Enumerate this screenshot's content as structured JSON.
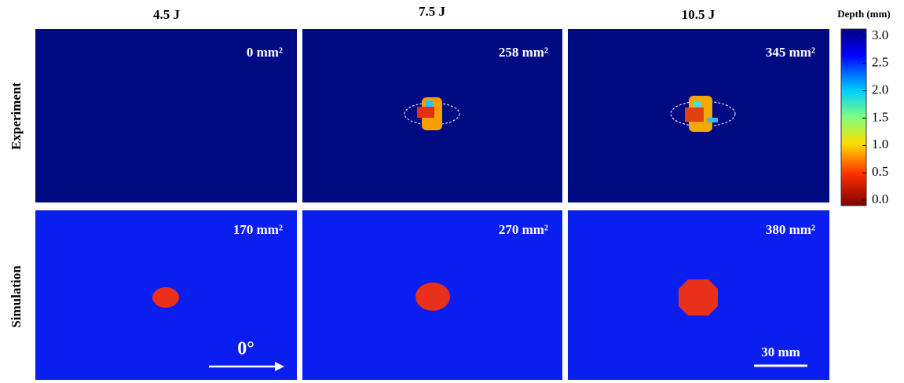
{
  "columns": [
    "4.5 J",
    "7.5 J",
    "10.5 J"
  ],
  "rows": [
    "Experiment",
    "Simulation"
  ],
  "panels": [
    [
      "0 mm²",
      "258 mm²",
      "345 mm²"
    ],
    [
      "170 mm²",
      "270 mm²",
      "380 mm²"
    ]
  ],
  "direction_label": "0°",
  "scale_bar_label": "30 mm",
  "colorbar": {
    "title": "Depth (mm)",
    "ticks": [
      {
        "value": 3,
        "label": "3.0"
      },
      {
        "value": 2.5,
        "label": "2.5"
      },
      {
        "value": 2,
        "label": "2.0"
      },
      {
        "value": 1.5,
        "label": "1.5"
      },
      {
        "value": 1,
        "label": "1.0"
      },
      {
        "value": 0.5,
        "label": "0.5"
      },
      {
        "value": 0,
        "label": "0.0"
      }
    ]
  }
}
